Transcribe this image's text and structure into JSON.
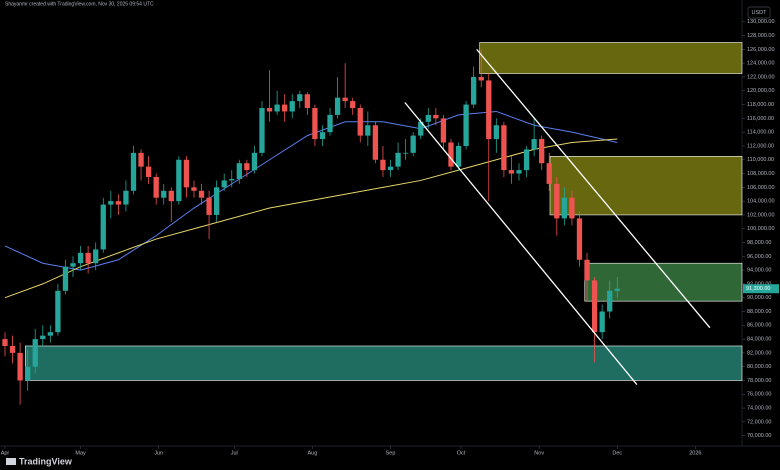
{
  "chart_data": {
    "type": "candlestick",
    "title": "Shayanmr created with TradingView.com, Nov 30, 2025 09:54 UTC",
    "currency": "USDT",
    "logo": "TradingView",
    "up_color": "#26a69a",
    "down_color": "#ef5350",
    "xlim": [
      -0.66,
      97.5
    ],
    "ylim": [
      68500,
      132000
    ],
    "xticks": [
      {
        "value": 0,
        "label": "Apr"
      },
      {
        "value": 10,
        "label": "May"
      },
      {
        "value": 20.33,
        "label": "Jun"
      },
      {
        "value": 30.33,
        "label": "Jul"
      },
      {
        "value": 40.67,
        "label": "Aug"
      },
      {
        "value": 51,
        "label": "Sep"
      },
      {
        "value": 60.33,
        "label": "Oct"
      },
      {
        "value": 70.67,
        "label": "Nov"
      },
      {
        "value": 81,
        "label": "Dec"
      },
      {
        "value": 91.33,
        "label": "2026"
      }
    ],
    "yticks": [
      {
        "value": 70000,
        "label": "70,000.00"
      },
      {
        "value": 72000,
        "label": "72,000.00"
      },
      {
        "value": 74000,
        "label": "74,000.00"
      },
      {
        "value": 76000,
        "label": "76,000.00"
      },
      {
        "value": 78000,
        "label": "78,000.00"
      },
      {
        "value": 80000,
        "label": "80,000.00"
      },
      {
        "value": 82000,
        "label": "82,000.00"
      },
      {
        "value": 84000,
        "label": "84,000.00"
      },
      {
        "value": 86000,
        "label": "86,000.00"
      },
      {
        "value": 88000,
        "label": "88,000.00"
      },
      {
        "value": 90000,
        "label": "90,000.00"
      },
      {
        "value": 92000,
        "label": "92,000.00"
      },
      {
        "value": 94000,
        "label": "94,000.00"
      },
      {
        "value": 96000,
        "label": "96,000.00"
      },
      {
        "value": 98000,
        "label": "98,000.00"
      },
      {
        "value": 100000,
        "label": "100,000.00"
      },
      {
        "value": 102000,
        "label": "102,000.00"
      },
      {
        "value": 104000,
        "label": "104,000.00"
      },
      {
        "value": 106000,
        "label": "106,000.00"
      },
      {
        "value": 108000,
        "label": "108,000.00"
      },
      {
        "value": 110000,
        "label": "110,000.00"
      },
      {
        "value": 112000,
        "label": "112,000.00"
      },
      {
        "value": 114000,
        "label": "114,000.00"
      },
      {
        "value": 116000,
        "label": "116,000.00"
      },
      {
        "value": 118000,
        "label": "118,000.00"
      },
      {
        "value": 120000,
        "label": "120,000.00"
      },
      {
        "value": 122000,
        "label": "122,000.00"
      },
      {
        "value": 124000,
        "label": "124,000.00"
      },
      {
        "value": 126000,
        "label": "126,000.00"
      },
      {
        "value": 128000,
        "label": "128,000.00"
      },
      {
        "value": 130000,
        "label": "130,000.00"
      }
    ],
    "candles": [
      [
        84000,
        85000,
        81500,
        83000
      ],
      [
        83000,
        84500,
        80500,
        82000
      ],
      [
        82000,
        83500,
        74500,
        78000
      ],
      [
        78000,
        82500,
        76500,
        80000
      ],
      [
        80000,
        85500,
        79000,
        84000
      ],
      [
        84000,
        86000,
        83000,
        84500
      ],
      [
        84500,
        86000,
        83500,
        85000
      ],
      [
        85000,
        92000,
        84500,
        91000
      ],
      [
        91000,
        95500,
        90500,
        94500
      ],
      [
        94500,
        96000,
        93000,
        95000
      ],
      [
        95000,
        97500,
        94000,
        96500
      ],
      [
        96500,
        97500,
        93500,
        95000
      ],
      [
        95000,
        98000,
        94000,
        97000
      ],
      [
        97000,
        104500,
        96500,
        103500
      ],
      [
        103500,
        105500,
        101500,
        104000
      ],
      [
        104000,
        105000,
        102000,
        103500
      ],
      [
        103500,
        107000,
        102500,
        105500
      ],
      [
        105500,
        112000,
        105000,
        111000
      ],
      [
        111000,
        111500,
        107000,
        109000
      ],
      [
        109000,
        110500,
        106500,
        107500
      ],
      [
        107500,
        108000,
        103500,
        104500
      ],
      [
        104500,
        106500,
        103500,
        105500
      ],
      [
        105500,
        106000,
        101000,
        104000
      ],
      [
        104000,
        110500,
        103500,
        110000
      ],
      [
        110000,
        110500,
        104500,
        106000
      ],
      [
        106000,
        107000,
        104500,
        105500
      ],
      [
        105500,
        106500,
        103500,
        104500
      ],
      [
        104500,
        105500,
        98500,
        102000
      ],
      [
        102000,
        107000,
        101000,
        106000
      ],
      [
        106000,
        108000,
        105500,
        107000
      ],
      [
        107000,
        108500,
        106000,
        107200
      ],
      [
        107200,
        110000,
        106500,
        109500
      ],
      [
        109500,
        110000,
        107500,
        108500
      ],
      [
        108500,
        112000,
        108000,
        111000
      ],
      [
        111000,
        118500,
        110500,
        117500
      ],
      [
        117500,
        123000,
        115500,
        117000
      ],
      [
        117000,
        120000,
        116500,
        118000
      ],
      [
        118000,
        119500,
        115500,
        117000
      ],
      [
        117000,
        119500,
        116000,
        118500
      ],
      [
        118500,
        120000,
        117500,
        119500
      ],
      [
        119500,
        119800,
        116500,
        117500
      ],
      [
        117500,
        118000,
        112000,
        113000
      ],
      [
        113000,
        115000,
        112000,
        114000
      ],
      [
        114000,
        117500,
        113500,
        116500
      ],
      [
        116500,
        122000,
        116000,
        119000
      ],
      [
        119000,
        124000,
        117500,
        118500
      ],
      [
        118500,
        119000,
        116500,
        117500
      ],
      [
        117500,
        118000,
        112500,
        113500
      ],
      [
        113500,
        117000,
        112000,
        115000
      ],
      [
        115000,
        115500,
        109500,
        110000
      ],
      [
        110000,
        112000,
        107500,
        108500
      ],
      [
        108500,
        110000,
        107500,
        109000
      ],
      [
        109000,
        112500,
        108500,
        111000
      ],
      [
        111000,
        113000,
        110000,
        111000
      ],
      [
        111000,
        114000,
        110500,
        113500
      ],
      [
        113500,
        116000,
        113000,
        115500
      ],
      [
        115500,
        117500,
        114500,
        116500
      ],
      [
        116500,
        117500,
        115000,
        116000
      ],
      [
        116000,
        116500,
        111500,
        112500
      ],
      [
        112500,
        113000,
        108500,
        109000
      ],
      [
        109000,
        112500,
        108500,
        112000
      ],
      [
        112000,
        118500,
        111500,
        118000
      ],
      [
        118000,
        123500,
        117500,
        122000
      ],
      [
        122000,
        126000,
        120500,
        121500
      ],
      [
        121500,
        122500,
        104000,
        113000
      ],
      [
        113000,
        116000,
        111000,
        115000
      ],
      [
        115000,
        115500,
        107500,
        108500
      ],
      [
        108500,
        110500,
        106500,
        108000
      ],
      [
        108000,
        109500,
        107000,
        108500
      ],
      [
        108500,
        112000,
        107500,
        111500
      ],
      [
        111500,
        116000,
        110500,
        113000
      ],
      [
        113000,
        113500,
        108500,
        109500
      ],
      [
        109500,
        111000,
        105500,
        106500
      ],
      [
        106500,
        107500,
        99000,
        101500
      ],
      [
        101500,
        106000,
        100500,
        104500
      ],
      [
        104500,
        105500,
        100500,
        101500
      ],
      [
        101500,
        102500,
        94500,
        95500
      ],
      [
        95500,
        96500,
        89500,
        92500
      ],
      [
        92500,
        93000,
        80600,
        85000
      ],
      [
        85000,
        89000,
        84000,
        88000
      ],
      [
        88000,
        92500,
        87000,
        91000
      ],
      [
        91000,
        93000,
        90000,
        91300
      ]
    ],
    "series": [
      {
        "color": "#5b7ff0",
        "x": [
          0,
          5,
          10,
          15,
          20,
          25,
          30,
          35,
          40,
          45,
          50,
          55,
          60,
          65,
          70,
          75,
          81
        ],
        "values": [
          97500,
          95000,
          94000,
          95500,
          99000,
          103000,
          106500,
          110000,
          113500,
          115500,
          115500,
          114500,
          116500,
          117000,
          115000,
          114000,
          112500
        ]
      },
      {
        "color": "#e6d66a",
        "x": [
          0,
          5,
          10,
          15,
          20,
          25,
          30,
          35,
          40,
          45,
          50,
          55,
          60,
          65,
          70,
          75,
          81
        ],
        "values": [
          90000,
          92000,
          94500,
          96500,
          98500,
          100000,
          101500,
          103000,
          104000,
          105000,
          106000,
          107000,
          108500,
          110000,
          111500,
          112500,
          113000
        ]
      }
    ],
    "zones": [
      {
        "color": "#8a8a14",
        "x": [
          62.8,
          97.5
        ],
        "y": [
          122500,
          127000
        ]
      },
      {
        "color": "#8a8a14",
        "x": [
          72.1,
          97.5
        ],
        "y": [
          102000,
          110500
        ]
      },
      {
        "color": "#3f8a4a",
        "x": [
          76.7,
          97.5
        ],
        "y": [
          89500,
          95000
        ]
      },
      {
        "color": "#2a9080",
        "x": [
          2.7,
          97.5
        ],
        "y": [
          78000,
          83000
        ]
      }
    ],
    "lines": [
      {
        "color": "#ffffff",
        "x": [
          52.9,
          83.6
        ],
        "y": [
          118300,
          77400
        ]
      },
      {
        "color": "#ffffff",
        "x": [
          62.4,
          93.25
        ],
        "y": [
          126000,
          85650
        ]
      }
    ],
    "last_price": {
      "value": 91300,
      "label": "91,300.00"
    }
  }
}
